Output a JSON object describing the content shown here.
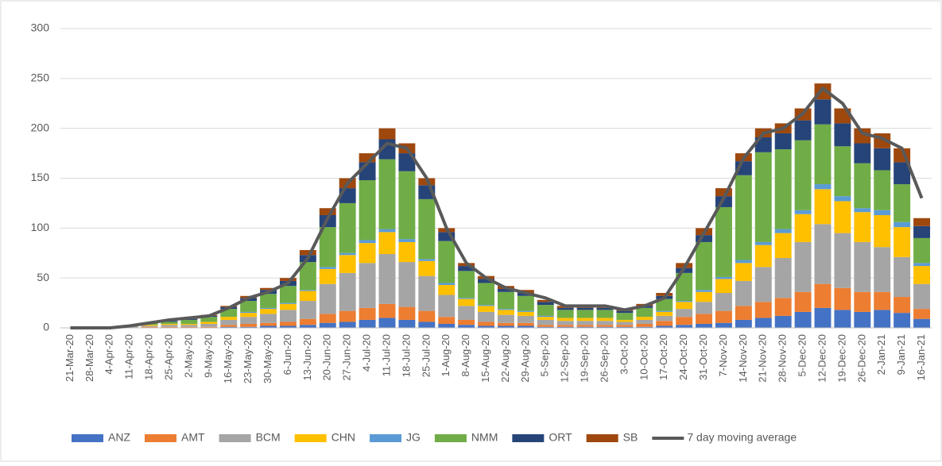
{
  "chart_data": {
    "type": "bar",
    "stacked": true,
    "categories": [
      "21-Mar-20",
      "28-Mar-20",
      "4-Apr-20",
      "11-Apr-20",
      "18-Apr-20",
      "25-Apr-20",
      "2-May-20",
      "9-May-20",
      "16-May-20",
      "23-May-20",
      "30-May-20",
      "6-Jun-20",
      "13-Jun-20",
      "20-Jun-20",
      "27-Jun-20",
      "4-Jul-20",
      "11-Jul-20",
      "18-Jul-20",
      "25-Jul-20",
      "1-Aug-20",
      "8-Aug-20",
      "15-Aug-20",
      "22-Aug-20",
      "29-Aug-20",
      "5-Sep-20",
      "12-Sep-20",
      "19-Sep-20",
      "26-Sep-20",
      "3-Oct-20",
      "10-Oct-20",
      "17-Oct-20",
      "24-Oct-20",
      "31-Oct-20",
      "7-Nov-20",
      "14-Nov-20",
      "21-Nov-20",
      "28-Nov-20",
      "5-Dec-20",
      "12-Dec-20",
      "19-Dec-20",
      "26-Dec-20",
      "2-Jan-21",
      "9-Jan-21",
      "16-Jan-21"
    ],
    "series": [
      {
        "name": "ANZ",
        "color": "#4472c4",
        "values": [
          0,
          0,
          0,
          0,
          0,
          0,
          0,
          0,
          1,
          1,
          2,
          2,
          3,
          5,
          6,
          8,
          10,
          8,
          6,
          4,
          3,
          2,
          2,
          2,
          1,
          1,
          1,
          1,
          1,
          1,
          2,
          3,
          4,
          5,
          8,
          10,
          12,
          16,
          20,
          18,
          16,
          18,
          15,
          9
        ]
      },
      {
        "name": "AMT",
        "color": "#ed7d31",
        "values": [
          0,
          0,
          0,
          0,
          1,
          1,
          1,
          1,
          2,
          3,
          3,
          4,
          6,
          9,
          11,
          12,
          14,
          13,
          11,
          7,
          5,
          4,
          3,
          3,
          2,
          2,
          2,
          2,
          2,
          3,
          5,
          8,
          10,
          12,
          14,
          16,
          18,
          20,
          24,
          22,
          20,
          18,
          16,
          10
        ]
      },
      {
        "name": "BCM",
        "color": "#a5a5a5",
        "values": [
          0,
          0,
          0,
          1,
          1,
          2,
          2,
          3,
          5,
          7,
          9,
          12,
          18,
          30,
          38,
          45,
          50,
          45,
          35,
          22,
          14,
          10,
          8,
          7,
          5,
          4,
          4,
          4,
          3,
          4,
          5,
          8,
          12,
          18,
          25,
          35,
          40,
          50,
          60,
          55,
          50,
          45,
          40,
          25
        ]
      },
      {
        "name": "CHN",
        "color": "#ffc000",
        "values": [
          0,
          0,
          0,
          0,
          1,
          1,
          1,
          2,
          3,
          4,
          5,
          6,
          10,
          15,
          18,
          20,
          22,
          20,
          15,
          10,
          7,
          6,
          5,
          4,
          3,
          3,
          3,
          3,
          2,
          3,
          4,
          7,
          10,
          14,
          18,
          22,
          25,
          28,
          35,
          32,
          30,
          32,
          30,
          18
        ]
      },
      {
        "name": "JG",
        "color": "#5b9bd5",
        "values": [
          0,
          0,
          0,
          0,
          0,
          0,
          0,
          0,
          0,
          1,
          1,
          1,
          1,
          2,
          2,
          3,
          3,
          3,
          2,
          2,
          1,
          1,
          1,
          1,
          1,
          0,
          0,
          0,
          0,
          0,
          1,
          1,
          2,
          2,
          3,
          3,
          4,
          4,
          5,
          5,
          4,
          5,
          5,
          3
        ]
      },
      {
        "name": "NMM",
        "color": "#70ad47",
        "values": [
          0,
          0,
          0,
          1,
          2,
          2,
          4,
          5,
          8,
          11,
          14,
          17,
          28,
          40,
          50,
          60,
          70,
          68,
          60,
          42,
          27,
          22,
          17,
          15,
          11,
          8,
          8,
          8,
          7,
          9,
          12,
          28,
          48,
          70,
          85,
          90,
          80,
          70,
          60,
          50,
          45,
          40,
          38,
          25
        ]
      },
      {
        "name": "ORT",
        "color": "#264478",
        "values": [
          0,
          0,
          0,
          0,
          0,
          1,
          1,
          1,
          2,
          3,
          4,
          5,
          7,
          12,
          15,
          18,
          20,
          18,
          14,
          9,
          5,
          4,
          3,
          3,
          3,
          2,
          2,
          2,
          2,
          2,
          3,
          5,
          7,
          11,
          14,
          15,
          16,
          20,
          25,
          23,
          20,
          22,
          22,
          12
        ]
      },
      {
        "name": "SB",
        "color": "#9e480e",
        "values": [
          0,
          0,
          0,
          0,
          0,
          0,
          1,
          1,
          1,
          2,
          2,
          3,
          5,
          7,
          10,
          9,
          11,
          10,
          7,
          4,
          3,
          3,
          3,
          3,
          2,
          2,
          2,
          2,
          1,
          2,
          3,
          5,
          7,
          8,
          8,
          9,
          10,
          12,
          16,
          15,
          15,
          15,
          14,
          8
        ]
      }
    ],
    "line": {
      "name": "7 day moving average",
      "color": "#595959",
      "values": [
        0,
        0,
        0,
        2,
        5,
        8,
        10,
        12,
        20,
        30,
        36,
        45,
        70,
        110,
        145,
        165,
        185,
        180,
        150,
        100,
        65,
        50,
        40,
        35,
        30,
        22,
        22,
        22,
        18,
        22,
        30,
        60,
        95,
        130,
        170,
        195,
        200,
        215,
        240,
        225,
        195,
        190,
        180,
        130
      ]
    },
    "ylim": [
      0,
      300
    ],
    "yticks": [
      0,
      50,
      100,
      150,
      200,
      250,
      300
    ],
    "grid": true,
    "legend": "bottom"
  }
}
